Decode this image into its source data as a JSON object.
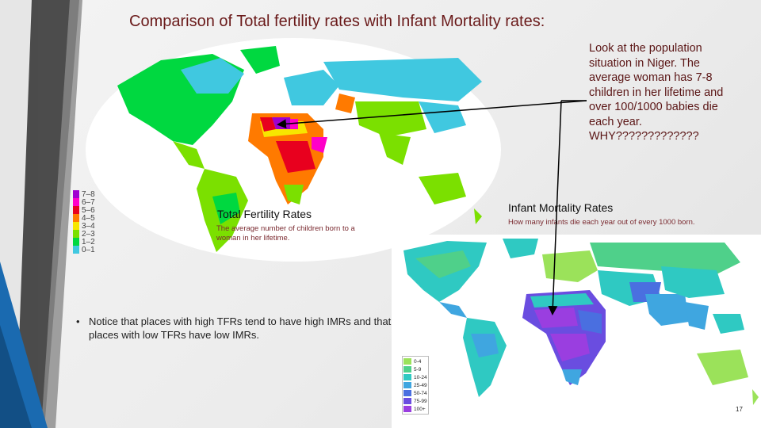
{
  "slide": {
    "title": "Comparison of Total fertility rates with Infant Mortality rates:",
    "page_number": "17"
  },
  "tfr_map": {
    "label": "Total Fertility Rates",
    "subtitle": "The average number of children born to a woman in her lifetime.",
    "legend": [
      {
        "label": "7–8",
        "color": "#a000d0"
      },
      {
        "label": "6–7",
        "color": "#ff00c8"
      },
      {
        "label": "5–6",
        "color": "#e8001e"
      },
      {
        "label": "4–5",
        "color": "#ff7a00"
      },
      {
        "label": "3–4",
        "color": "#f7e600"
      },
      {
        "label": "2–3",
        "color": "#7be000"
      },
      {
        "label": "1–2",
        "color": "#00d840"
      },
      {
        "label": "0–1",
        "color": "#40c8e0"
      }
    ]
  },
  "imr_map": {
    "label": "Infant Mortality Rates",
    "subtitle": "How many infants die each year out of every 1000 born.",
    "legend": [
      {
        "label": "0-4",
        "color": "#9be25a"
      },
      {
        "label": "5-9",
        "color": "#4fd08a"
      },
      {
        "label": "10-24",
        "color": "#2fc9c2"
      },
      {
        "label": "25-49",
        "color": "#3fa6e0"
      },
      {
        "label": "50-74",
        "color": "#4a6fe0"
      },
      {
        "label": "75-99",
        "color": "#6a4de0"
      },
      {
        "label": "100+",
        "color": "#9a3ee0"
      }
    ]
  },
  "note": {
    "text": "Look at the population situation in Niger. The average woman has 7-8 children in her lifetime and over 100/1000 babies die each year. WHY?????????????"
  },
  "bullet": {
    "symbol": "•",
    "text": "Notice that places with high TFRs tend to have high IMRs and that places with low TFRs have low IMRs."
  }
}
